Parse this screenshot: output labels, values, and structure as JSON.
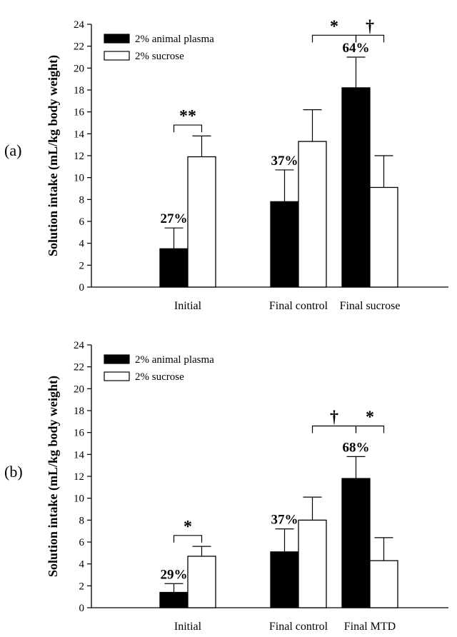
{
  "chart_data": [
    {
      "type": "bar",
      "panel_label": "(a)",
      "ylabel": "Solution intake (mL/kg body weight)",
      "ylim": [
        0,
        24
      ],
      "yticks": [
        "0",
        "2",
        "4",
        "6",
        "8",
        "10",
        "12",
        "14",
        "16",
        "18",
        "20",
        "22",
        "24"
      ],
      "categories": [
        "Initial",
        "Final control",
        "Final sucrose"
      ],
      "legend_placement": "top-left",
      "series": [
        {
          "name": "2% animal plasma",
          "color": "#000000",
          "values": [
            3.5,
            7.8,
            18.2
          ],
          "errors": [
            1.9,
            2.9,
            2.8
          ]
        },
        {
          "name": "2% sucrose",
          "color": "#ffffff",
          "values": [
            11.9,
            13.3,
            9.1
          ],
          "errors": [
            1.9,
            2.9,
            2.9
          ]
        }
      ],
      "percent_labels": [
        "27%",
        "37%",
        "64%"
      ],
      "significance": [
        {
          "symbol": "**",
          "from": "Initial:2% animal plasma",
          "to": "Initial:2% sucrose",
          "bracket_y": 14.8
        },
        {
          "symbol": "*",
          "from": "Final control:2% sucrose",
          "to": "Final sucrose:2% animal plasma",
          "bracket_y": 23.0
        },
        {
          "symbol": "†",
          "from": "Final sucrose:2% animal plasma",
          "to": "Final sucrose:2% sucrose",
          "bracket_y": 23.0
        }
      ]
    },
    {
      "type": "bar",
      "panel_label": "(b)",
      "ylabel": "Solution intake (mL/kg body weight)",
      "ylim": [
        0,
        24
      ],
      "yticks": [
        "0",
        "2",
        "4",
        "6",
        "8",
        "10",
        "12",
        "14",
        "16",
        "18",
        "20",
        "22",
        "24"
      ],
      "categories": [
        "Initial",
        "Final control",
        "Final MTD"
      ],
      "legend_placement": "top-left",
      "series": [
        {
          "name": "2% animal plasma",
          "color": "#000000",
          "values": [
            1.4,
            5.1,
            11.8
          ],
          "errors": [
            0.8,
            2.1,
            2.0
          ]
        },
        {
          "name": "2% sucrose",
          "color": "#ffffff",
          "values": [
            4.7,
            8.0,
            4.3
          ],
          "errors": [
            0.9,
            2.1,
            2.1
          ]
        }
      ],
      "percent_labels": [
        "29%",
        "37%",
        "68%"
      ],
      "significance": [
        {
          "symbol": "*",
          "from": "Initial:2% animal plasma",
          "to": "Initial:2% sucrose",
          "bracket_y": 6.6
        },
        {
          "symbol": "†",
          "from": "Final control:2% sucrose",
          "to": "Final MTD:2% animal plasma",
          "bracket_y": 16.6
        },
        {
          "symbol": "*",
          "from": "Final MTD:2% animal plasma",
          "to": "Final MTD:2% sucrose",
          "bracket_y": 16.6
        }
      ]
    }
  ]
}
